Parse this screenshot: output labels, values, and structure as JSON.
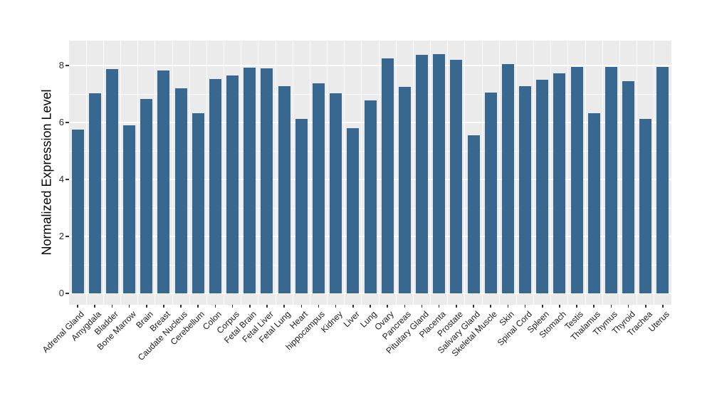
{
  "chart_data": {
    "type": "bar",
    "title": "",
    "xlabel": "",
    "ylabel": "Normalized Expression Level",
    "categories": [
      "Adrenal Gland",
      "Amygdala",
      "Bladder",
      "Bone Marrow",
      "Brain",
      "Breast",
      "Caudate Nucleus",
      "Cerebellum",
      "Colon",
      "Corpus",
      "Fetal Brain",
      "Fetal Liver",
      "Fetal Lung",
      "Heart",
      "hippocampus",
      "Kidney",
      "Liver",
      "Lung",
      "Ovary",
      "Pancreas",
      "Pituitary Gland",
      "Placenta",
      "Prostate",
      "Salivary Gland",
      "Skeletal Muscle",
      "Skin",
      "Spinal Cord",
      "Spleen",
      "Stomach",
      "Testis",
      "Thalamus",
      "Thymus",
      "Thyroid",
      "Trachea",
      "Uterus"
    ],
    "values": [
      5.75,
      7.03,
      7.88,
      5.91,
      6.83,
      7.82,
      7.19,
      6.33,
      7.52,
      7.65,
      7.93,
      7.91,
      7.28,
      6.13,
      7.38,
      7.03,
      5.79,
      6.78,
      8.25,
      7.26,
      8.37,
      8.41,
      8.19,
      5.56,
      7.05,
      8.04,
      7.27,
      7.49,
      7.73,
      7.96,
      6.32,
      7.94,
      7.44,
      6.13,
      7.94
    ],
    "yticks": [
      0,
      2,
      4,
      6,
      8
    ],
    "yminor": [
      1,
      3,
      5,
      7
    ],
    "ylim": [
      0,
      8.875
    ],
    "grid": "on",
    "legend_position": "none",
    "colors": {
      "bar_fill": "#38678F",
      "panel_background": "#EBEBEB",
      "gridline": "#FFFFFF",
      "tick_mark": "#333333",
      "tick_label": "#1A1A1A",
      "figure_background": "#FFFFFF"
    }
  }
}
